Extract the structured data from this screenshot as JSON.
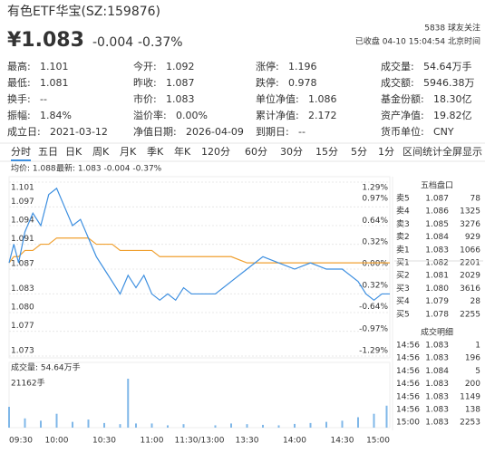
{
  "header": {
    "title": "有色ETF华宝(SZ:159876)",
    "price": "¥1.083",
    "change": "-0.004",
    "change_pct": "-0.37%",
    "followers": "5838 球友关注",
    "status": "已收盘 04-10 15:04:54 北京时间"
  },
  "stats": [
    [
      {
        "label": "最高:",
        "value": "1.101",
        "color": "#e0534a"
      },
      {
        "label": "今开:",
        "value": "1.092",
        "color": "#e0534a"
      },
      {
        "label": "涨停:",
        "value": "1.196",
        "color": "#e0534a"
      },
      {
        "label": "成交量:",
        "value": "54.64万手"
      }
    ],
    [
      {
        "label": "最低:",
        "value": "1.081",
        "color": "#1a9f50"
      },
      {
        "label": "昨收:",
        "value": "1.087"
      },
      {
        "label": "跌停:",
        "value": "0.978",
        "color": "#1a9f50"
      },
      {
        "label": "成交额:",
        "value": "5946.38万"
      }
    ],
    [
      {
        "label": "换手:",
        "value": "--"
      },
      {
        "label": "市价:",
        "value": "1.083"
      },
      {
        "label": "单位净值:",
        "value": "1.086"
      },
      {
        "label": "基金份额:",
        "value": "18.30亿"
      }
    ],
    [
      {
        "label": "振幅:",
        "value": "1.84%"
      },
      {
        "label": "溢价率:",
        "value": "0.00%"
      },
      {
        "label": "累计净值:",
        "value": "2.172"
      },
      {
        "label": "资产净值:",
        "value": "19.82亿"
      }
    ],
    [
      {
        "label": "成立日:",
        "value": "2021-03-12"
      },
      {
        "label": "净值日期:",
        "value": "2026-04-09"
      },
      {
        "label": "到期日:",
        "value": "--"
      },
      {
        "label": "货币单位:",
        "value": "CNY"
      }
    ]
  ],
  "tabs": [
    "分时",
    "五日",
    "日K",
    "周K",
    "月K",
    "季K",
    "年K",
    "120分",
    "60分",
    "30分",
    "15分",
    "5分",
    "1分"
  ],
  "tools": [
    "区间统计",
    "全屏显示"
  ],
  "chart": {
    "type": "line",
    "avg_label": "均价: 1.088",
    "latest_label": "最新: 1.083 -0.004 -0.37%",
    "x": [
      0,
      3,
      6,
      10,
      15,
      20,
      25,
      30,
      35,
      40,
      45,
      50,
      55,
      60,
      65,
      70,
      75,
      80,
      85,
      90,
      95,
      100,
      105,
      110,
      115,
      120,
      130,
      140,
      150,
      160,
      170,
      180,
      190,
      200,
      210,
      220,
      225,
      230,
      235,
      240
    ],
    "series": [
      {
        "name": "最新",
        "color": "#3d8fe0",
        "values": [
          1.088,
          1.091,
          1.088,
          1.093,
          1.096,
          1.094,
          1.099,
          1.1,
          1.097,
          1.094,
          1.095,
          1.092,
          1.089,
          1.087,
          1.085,
          1.083,
          1.086,
          1.084,
          1.086,
          1.083,
          1.082,
          1.083,
          1.082,
          1.084,
          1.083,
          1.083,
          1.083,
          1.085,
          1.087,
          1.089,
          1.088,
          1.087,
          1.088,
          1.087,
          1.087,
          1.085,
          1.083,
          1.082,
          1.083,
          1.083
        ]
      },
      {
        "name": "均价",
        "color": "#f0a030",
        "values": [
          1.088,
          1.089,
          1.089,
          1.09,
          1.09,
          1.091,
          1.091,
          1.092,
          1.092,
          1.092,
          1.092,
          1.092,
          1.091,
          1.091,
          1.091,
          1.09,
          1.09,
          1.09,
          1.09,
          1.09,
          1.089,
          1.089,
          1.089,
          1.089,
          1.089,
          1.089,
          1.089,
          1.089,
          1.088,
          1.088,
          1.088,
          1.088,
          1.088,
          1.088,
          1.088,
          1.088,
          1.088,
          1.088,
          1.088,
          1.088
        ]
      }
    ],
    "xlim": [
      0,
      240
    ],
    "xticks": [
      {
        "value": 0,
        "label": "09:30"
      },
      {
        "value": 30,
        "label": "10:00"
      },
      {
        "value": 60,
        "label": "10:30"
      },
      {
        "value": 90,
        "label": "11:00"
      },
      {
        "value": 120,
        "label": "11:30/13:00"
      },
      {
        "value": 150,
        "label": "13:30"
      },
      {
        "value": 180,
        "label": "14:00"
      },
      {
        "value": 210,
        "label": "14:30"
      },
      {
        "value": 240,
        "label": "15:00"
      }
    ],
    "ylim": [
      1.073,
      1.101
    ],
    "yticks": [
      1.101,
      1.097,
      1.094,
      1.091,
      1.087,
      1.083,
      {
        "value": 1.08,
        "label": "1.080"
      },
      1.077,
      1.073
    ],
    "y2lim": [
      -1.29,
      1.29
    ],
    "y2ticks": [
      {
        "value": 1.29,
        "label": "1.29%"
      },
      {
        "value": 0.97,
        "label": "0.97%"
      },
      {
        "value": 0.64,
        "label": "0.64%"
      },
      {
        "value": 0.32,
        "label": "0.32%"
      },
      {
        "value": 0,
        "label": "0.00%"
      },
      {
        "value": -0.32,
        "label": "-0.32%"
      },
      {
        "value": -0.64,
        "label": "-0.64%"
      },
      {
        "value": -0.97,
        "label": "-0.97%"
      },
      {
        "value": -1.29,
        "label": "-1.29%"
      }
    ],
    "volume": {
      "label": "成交量: 54.64万手",
      "color": "#7fb7e8",
      "x": [
        0,
        10,
        20,
        30,
        40,
        50,
        60,
        70,
        75,
        80,
        90,
        100,
        110,
        130,
        140,
        150,
        160,
        170,
        180,
        190,
        200,
        210,
        220,
        230,
        238
      ],
      "values": [
        9000,
        4000,
        3000,
        6000,
        2500,
        3500,
        2000,
        1500,
        21162,
        1800,
        1800,
        1000,
        1500,
        1000,
        1800,
        1500,
        1200,
        1000,
        1600,
        2000,
        2500,
        3000,
        4500,
        6000,
        9500
      ],
      "ylim": [
        0,
        21162
      ],
      "yticks": [
        {
          "value": 21162,
          "label": "21162手"
        }
      ]
    }
  },
  "order_book": {
    "title": "五档盘口",
    "price_color": "#1a9f50",
    "rows": [
      [
        "卖5",
        "1.087",
        "78"
      ],
      [
        "卖4",
        "1.086",
        "1325"
      ],
      [
        "卖3",
        "1.085",
        "3276"
      ],
      [
        "卖2",
        "1.084",
        "929"
      ],
      [
        "卖1",
        "1.083",
        "1066"
      ],
      [
        "买1",
        "1.082",
        "2201"
      ],
      [
        "买2",
        "1.081",
        "2029"
      ],
      [
        "买3",
        "1.080",
        "3616"
      ],
      [
        "买4",
        "1.079",
        "28"
      ],
      [
        "买5",
        "1.078",
        "2255"
      ]
    ]
  },
  "trades": {
    "title": "成交明细",
    "rows": [
      [
        "14:56",
        "1.083",
        "1"
      ],
      [
        "14:56",
        "1.083",
        "196"
      ],
      [
        "14:56",
        "1.084",
        "5"
      ],
      [
        "14:56",
        "1.083",
        "200"
      ],
      [
        "14:56",
        "1.083",
        "1149"
      ],
      [
        "14:56",
        "1.083",
        "138"
      ],
      [
        "15:00",
        "1.083",
        "2253"
      ]
    ]
  }
}
